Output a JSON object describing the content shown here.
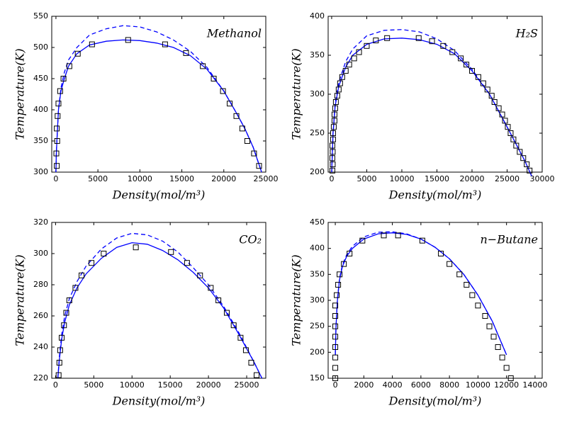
{
  "chart_data": [
    {
      "type": "line",
      "title": "Methanol",
      "xlabel": "Density(mol/m³)",
      "ylabel": "Temperature(K)",
      "xlim": [
        -500,
        25000
      ],
      "ylim": [
        300,
        550
      ],
      "xticks": [
        0,
        5000,
        10000,
        15000,
        20000,
        25000
      ],
      "yticks": [
        300,
        350,
        400,
        450,
        500,
        550
      ],
      "series": [
        {
          "style": "solid",
          "color": "#0000ff",
          "x": [
            0,
            50,
            150,
            300,
            600,
            1000,
            1500,
            2500,
            4000,
            6000,
            8000,
            10000,
            12000,
            14000,
            16000,
            18000,
            20000,
            21500,
            22500,
            23500,
            24500
          ],
          "values": [
            300,
            330,
            360,
            400,
            430,
            450,
            470,
            490,
            504,
            510,
            512,
            511,
            507,
            500,
            487,
            465,
            430,
            395,
            370,
            340,
            300
          ]
        },
        {
          "style": "dashed",
          "color": "#0000ff",
          "x": [
            0,
            50,
            150,
            300,
            600,
            1000,
            1500,
            2500,
            4000,
            6000,
            8000,
            10000,
            12000,
            14000,
            16000,
            18000,
            20000,
            21500,
            22500,
            23500,
            24500
          ],
          "values": [
            300,
            330,
            360,
            400,
            435,
            460,
            480,
            500,
            520,
            530,
            535,
            533,
            525,
            512,
            494,
            468,
            430,
            395,
            370,
            340,
            300
          ]
        },
        {
          "style": "square",
          "color": "#000000",
          "x": [
            100,
            50,
            150,
            100,
            200,
            300,
            500,
            900,
            1600,
            2600,
            4300,
            8600,
            13000,
            15500,
            17500,
            18800,
            19900,
            20700,
            21500,
            22200,
            22800,
            23600,
            24200
          ],
          "values": [
            310,
            330,
            350,
            370,
            390,
            410,
            430,
            450,
            470,
            490,
            505,
            512,
            505,
            491,
            470,
            450,
            430,
            410,
            390,
            370,
            350,
            330,
            310
          ]
        }
      ]
    },
    {
      "type": "line",
      "title": "H₂S",
      "xlabel": "Density(mol/m³)",
      "ylabel": "Temperature(K)",
      "xlim": [
        -500,
        30000
      ],
      "ylim": [
        200,
        400
      ],
      "xticks": [
        0,
        5000,
        10000,
        15000,
        20000,
        25000,
        30000
      ],
      "yticks": [
        200,
        250,
        300,
        350,
        400
      ],
      "series": [
        {
          "style": "solid",
          "color": "#0000ff",
          "x": [
            0,
            200,
            500,
            1000,
            2000,
            3000,
            5000,
            7500,
            10000,
            12500,
            15000,
            17500,
            20000,
            22500,
            25000,
            27500,
            28500
          ],
          "values": [
            200,
            250,
            285,
            310,
            335,
            350,
            364,
            371,
            372,
            370,
            364,
            352,
            330,
            300,
            258,
            215,
            195
          ]
        },
        {
          "style": "dashed",
          "color": "#0000ff",
          "x": [
            0,
            200,
            500,
            1000,
            2000,
            3000,
            5000,
            7500,
            10000,
            12500,
            15000,
            17500,
            20000,
            22500,
            25000,
            27500,
            28500
          ],
          "values": [
            200,
            250,
            288,
            315,
            342,
            358,
            375,
            382,
            383,
            380,
            371,
            356,
            332,
            300,
            258,
            215,
            195
          ]
        },
        {
          "style": "square",
          "color": "#000000",
          "x": [
            100,
            150,
            100,
            150,
            100,
            200,
            200,
            300,
            400,
            400,
            500,
            600,
            800,
            1000,
            1200,
            1500,
            2000,
            2500,
            3200,
            3900,
            5000,
            6300,
            7900,
            12400,
            14300,
            15900,
            17200,
            18400,
            19200,
            20000,
            20900,
            21600,
            22200,
            22800,
            23200,
            23800,
            24300,
            24700,
            25100,
            25500,
            25900,
            26300,
            26800,
            27300,
            27800,
            28200
          ],
          "values": [
            202,
            210,
            218,
            226,
            234,
            242,
            250,
            258,
            266,
            274,
            282,
            290,
            298,
            306,
            314,
            322,
            330,
            338,
            346,
            354,
            362,
            369,
            372,
            372,
            368,
            362,
            354,
            346,
            338,
            330,
            322,
            314,
            306,
            298,
            290,
            282,
            274,
            266,
            258,
            250,
            242,
            234,
            226,
            218,
            210,
            202
          ]
        }
      ]
    },
    {
      "type": "line",
      "title": "CO₂",
      "xlabel": "Density(mol/m³)",
      "ylabel": "Temperature(K)",
      "xlim": [
        -500,
        27500
      ],
      "ylim": [
        220,
        320
      ],
      "xticks": [
        0,
        5000,
        10000,
        15000,
        20000,
        25000
      ],
      "yticks": [
        220,
        240,
        260,
        280,
        300,
        320
      ],
      "series": [
        {
          "style": "solid",
          "color": "#0000ff",
          "x": [
            300,
            500,
            800,
            1200,
            1800,
            2800,
            4000,
            6000,
            8000,
            10000,
            12000,
            14000,
            16000,
            18000,
            20000,
            22000,
            24000,
            26000,
            27000
          ],
          "values": [
            220,
            232,
            245,
            256,
            267,
            278,
            287,
            297,
            304,
            307,
            306,
            302,
            296,
            288,
            278,
            265,
            248,
            230,
            220
          ]
        },
        {
          "style": "dashed",
          "color": "#0000ff",
          "x": [
            300,
            500,
            800,
            1200,
            1800,
            2800,
            4000,
            6000,
            8000,
            10000,
            12000,
            14000,
            16000,
            18000,
            20000,
            22000,
            24000,
            26000,
            27000
          ],
          "values": [
            220,
            234,
            248,
            260,
            271,
            282,
            292,
            303,
            310,
            313,
            312,
            308,
            301,
            291,
            280,
            266,
            249,
            230,
            220
          ]
        },
        {
          "style": "square",
          "color": "#000000",
          "x": [
            400,
            500,
            600,
            800,
            1100,
            1400,
            1800,
            2600,
            3400,
            4700,
            6300,
            10500,
            15100,
            17200,
            18900,
            20300,
            21300,
            22400,
            23300,
            24200,
            24900,
            25600,
            26300
          ],
          "values": [
            222,
            230,
            238,
            246,
            254,
            262,
            270,
            278,
            286,
            294,
            300,
            304,
            301,
            294,
            286,
            278,
            270,
            262,
            254,
            246,
            238,
            230,
            222
          ]
        }
      ]
    },
    {
      "type": "line",
      "title": "n−Butane",
      "xlabel": "Density(mol/m³)",
      "ylabel": "Temperature(K)",
      "xlim": [
        -500,
        14500
      ],
      "ylim": [
        150,
        450
      ],
      "xticks": [
        0,
        2000,
        4000,
        6000,
        8000,
        10000,
        12000,
        14000
      ],
      "yticks": [
        150,
        200,
        250,
        300,
        350,
        400,
        450
      ],
      "series": [
        {
          "style": "solid",
          "color": "#0000ff",
          "x": [
            0,
            50,
            150,
            300,
            500,
            800,
            1200,
            2000,
            3000,
            4000,
            5000,
            6000,
            7000,
            8000,
            9000,
            10000,
            11000,
            12000
          ],
          "values": [
            195,
            250,
            300,
            340,
            365,
            385,
            400,
            418,
            428,
            430,
            427,
            418,
            402,
            380,
            350,
            310,
            260,
            195
          ]
        },
        {
          "style": "dashed",
          "color": "#0000ff",
          "x": [
            0,
            50,
            150,
            300,
            500,
            800,
            1200,
            2000,
            3000,
            4000,
            5000,
            6000,
            7000,
            8000,
            9000,
            10000,
            11000,
            12000
          ],
          "values": [
            195,
            250,
            302,
            343,
            368,
            388,
            404,
            422,
            431,
            432,
            428,
            418,
            402,
            380,
            350,
            310,
            260,
            195
          ]
        },
        {
          "style": "square",
          "color": "#000000",
          "x": [
            0,
            0,
            0,
            0,
            0,
            0,
            0,
            0,
            100,
            200,
            300,
            600,
            1000,
            1900,
            3400,
            4400,
            6100,
            7400,
            8000,
            8700,
            9200,
            9600,
            10000,
            10500,
            10800,
            11100,
            11400,
            11700,
            12000,
            12300
          ],
          "values": [
            150,
            170,
            190,
            210,
            230,
            250,
            270,
            290,
            310,
            330,
            350,
            370,
            390,
            415,
            425,
            425,
            415,
            390,
            370,
            350,
            330,
            310,
            290,
            270,
            250,
            230,
            210,
            190,
            170,
            150
          ]
        }
      ]
    }
  ]
}
